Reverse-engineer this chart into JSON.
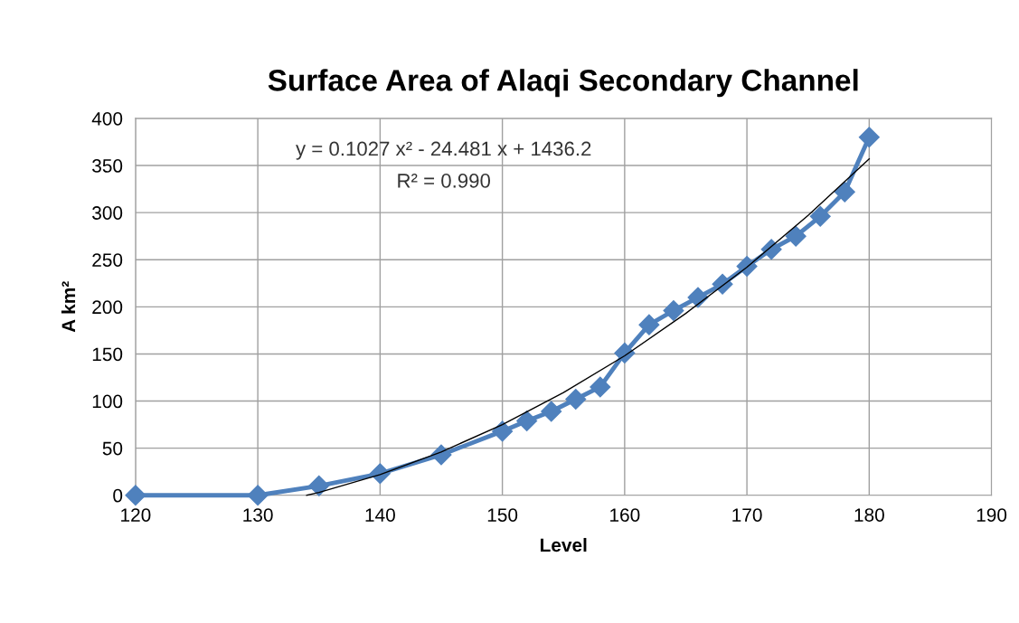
{
  "chart_data": {
    "type": "line",
    "title": "Surface Area of Alaqi Secondary Channel",
    "xlabel": "Level",
    "ylabel": "A km²",
    "series": [
      {
        "color": "#4f81bd",
        "marker": "diamond",
        "x": [
          120,
          130,
          135,
          140,
          145,
          150,
          152,
          154,
          156,
          158,
          160,
          162,
          164,
          166,
          168,
          170,
          172,
          174,
          176,
          178,
          180
        ],
        "values": [
          0,
          0,
          10,
          23,
          43,
          68,
          79,
          89,
          102,
          115,
          151,
          181,
          196,
          210,
          224,
          243,
          261,
          275,
          296,
          322,
          380
        ]
      },
      {
        "color": "#000000",
        "marker": "none",
        "x": [
          134,
          135,
          140,
          145,
          150,
          155,
          160,
          165,
          170,
          175,
          180
        ],
        "values": [
          0,
          3,
          22,
          46,
          75,
          109,
          148,
          193,
          242,
          297,
          357
        ]
      }
    ],
    "annotations": [
      "y = 0.1027 x² - 24.481 x + 1436.2",
      "R² = 0.990"
    ],
    "xlim": [
      120,
      190
    ],
    "xticks": [
      120,
      130,
      140,
      150,
      160,
      170,
      180,
      190
    ],
    "ylim": [
      0,
      400
    ],
    "yticks": [
      0,
      50,
      100,
      150,
      200,
      250,
      300,
      350,
      400
    ],
    "grid": true,
    "legend": false
  }
}
